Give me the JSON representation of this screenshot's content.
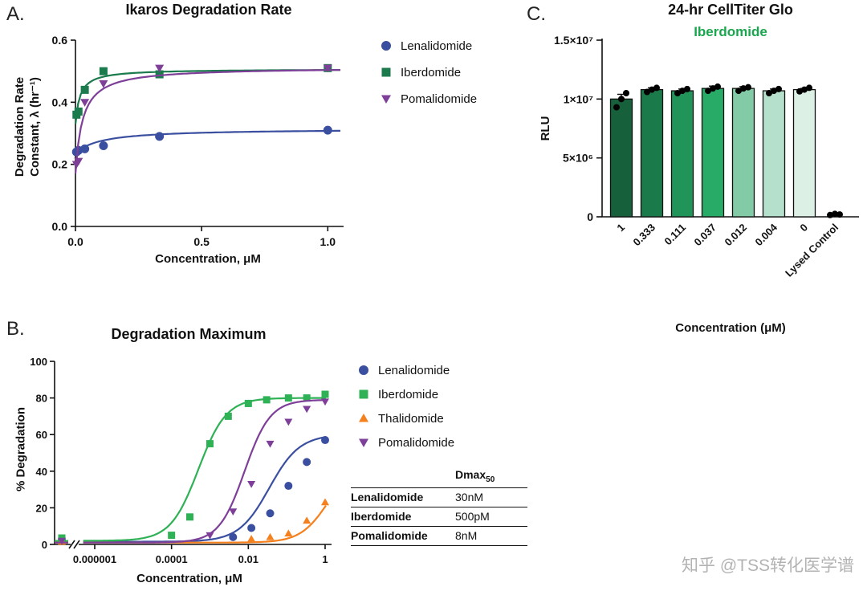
{
  "panels": {
    "a_label": "A.",
    "b_label": "B.",
    "c_label": "C."
  },
  "watermark": "知乎 @TSS转化医学谱",
  "dmax_table": {
    "header_main": "Dmax",
    "header_sub": "50",
    "rows": [
      {
        "name": "Lenalidomide",
        "value": "30nM"
      },
      {
        "name": "Iberdomide",
        "value": "500pM"
      },
      {
        "name": "Pomalidomide",
        "value": "8nM"
      }
    ]
  },
  "chart_data": [
    {
      "id": "panelA",
      "type": "scatter-line",
      "title": "Ikaros Degradation Rate",
      "xlabel": "Concentration, μM",
      "ylabel_line1": "Degradation Rate",
      "ylabel_line2": "Constant, λ (hr⁻¹)",
      "xlim": [
        0,
        1.05
      ],
      "ylim": [
        0,
        0.6
      ],
      "xticks": [
        0,
        0.5,
        1.0
      ],
      "xtick_labels": [
        "0.0",
        "0.5",
        "1.0"
      ],
      "yticks": [
        0,
        0.2,
        0.4,
        0.6
      ],
      "ytick_labels": [
        "0.0",
        "0.2",
        "0.4",
        "0.6"
      ],
      "grid": false,
      "legend_position": "right",
      "series": [
        {
          "name": "Lenalidomide",
          "color": "#3B4FA0",
          "marker": "circle",
          "x": [
            0.004,
            0.012,
            0.037,
            0.111,
            0.333,
            1.0
          ],
          "y": [
            0.24,
            0.245,
            0.25,
            0.26,
            0.29,
            0.31
          ],
          "fit": {
            "y0": 0.235,
            "plateau": 0.315,
            "K": 0.1
          }
        },
        {
          "name": "Iberdomide",
          "color": "#1B7B4C",
          "marker": "square",
          "x": [
            0.004,
            0.012,
            0.037,
            0.111,
            0.333,
            1.0
          ],
          "y": [
            0.36,
            0.37,
            0.44,
            0.5,
            0.49,
            0.51
          ],
          "fit": {
            "y0": 0.33,
            "plateau": 0.507,
            "K": 0.018
          }
        },
        {
          "name": "Pomalidomide",
          "color": "#7E3F98",
          "marker": "triangle-down",
          "x": [
            0.004,
            0.012,
            0.037,
            0.111,
            0.333,
            1.0
          ],
          "y": [
            0.2,
            0.21,
            0.4,
            0.46,
            0.51,
            0.51
          ],
          "fit": {
            "y0": 0.17,
            "plateau": 0.513,
            "K": 0.028
          }
        }
      ]
    },
    {
      "id": "panelB",
      "type": "dose-response",
      "title": "Degradation Maximum",
      "xlabel": "Concentration, μM",
      "ylabel": "% Degradation",
      "xscale": "log",
      "axis_break_at_zero": true,
      "ylim": [
        0,
        100
      ],
      "yticks": [
        0,
        20,
        40,
        60,
        80,
        100
      ],
      "xticks_log": [
        -6,
        -4,
        -2,
        0
      ],
      "xtick_labels": [
        "0.000001",
        "0.0001",
        "0.01",
        "1"
      ],
      "grid": false,
      "legend_position": "right",
      "series": [
        {
          "name": "Lenalidomide",
          "color": "#3B4FA0",
          "marker": "circle",
          "zero_y": 2.5,
          "x": [
            0.004,
            0.012,
            0.037,
            0.111,
            0.333,
            1.0
          ],
          "y": [
            4,
            9,
            17,
            32,
            45,
            57
          ],
          "fit": {
            "bottom": 1.5,
            "top": 60,
            "ec50": 0.035,
            "hill": 1.1
          }
        },
        {
          "name": "Iberdomide",
          "color": "#2FB156",
          "marker": "square",
          "zero_y": 3.5,
          "x": [
            0.0001,
            0.0003,
            0.001,
            0.003,
            0.01,
            0.03,
            0.111,
            0.333,
            1.0
          ],
          "y": [
            5,
            15,
            55,
            70,
            77,
            79,
            80,
            80,
            82
          ],
          "fit": {
            "bottom": 2,
            "top": 80,
            "ec50": 0.0005,
            "hill": 1.2
          }
        },
        {
          "name": "Thalidomide",
          "color": "#F5801E",
          "marker": "triangle-up",
          "zero_y": 1.5,
          "x": [
            0.012,
            0.037,
            0.111,
            0.333,
            1.0
          ],
          "y": [
            3,
            4,
            6,
            13,
            23
          ],
          "fit": {
            "bottom": 1,
            "top": 45,
            "ec50": 1.2,
            "hill": 1.2
          }
        },
        {
          "name": "Pomalidomide",
          "color": "#7E3F98",
          "marker": "triangle-down",
          "zero_y": 2.0,
          "x": [
            0.001,
            0.004,
            0.012,
            0.037,
            0.111,
            0.333,
            1.0
          ],
          "y": [
            5,
            18,
            33,
            55,
            67,
            74,
            78
          ],
          "fit": {
            "bottom": 1,
            "top": 79,
            "ec50": 0.008,
            "hill": 1.3
          }
        }
      ]
    },
    {
      "id": "panelC",
      "type": "bar",
      "title": "24-hr CellTiter Glo",
      "subtitle": "Iberdomide",
      "subtitle_color": "#1AA64E",
      "xlabel": "Concentration (μM)",
      "ylabel": "RLU",
      "ylim": [
        0,
        15000000
      ],
      "yticks": [
        0,
        5000000,
        10000000,
        15000000
      ],
      "ytick_labels": [
        "0",
        "5×10⁶",
        "1×10⁷",
        "1.5×10⁷"
      ],
      "categories": [
        "1",
        "0.333",
        "0.111",
        "0.037",
        "0.012",
        "0.004",
        "0",
        "Lysed Control"
      ],
      "values": [
        10000000,
        10800000,
        10700000,
        10900000,
        10900000,
        10700000,
        10800000,
        100000
      ],
      "bar_colors": [
        "#16603C",
        "#1B7A4A",
        "#21945A",
        "#29AB68",
        "#82CBA6",
        "#B5E0CB",
        "#DDF0E6",
        "#FFFFFF"
      ],
      "error": [
        400000,
        150000,
        150000,
        200000,
        150000,
        150000,
        100000,
        50000
      ],
      "dots": [
        [
          9300000,
          10000000,
          10500000
        ],
        [
          10600000,
          10800000,
          10950000
        ],
        [
          10500000,
          10700000,
          10850000
        ],
        [
          10700000,
          10900000,
          11050000
        ],
        [
          10700000,
          10900000,
          11000000
        ],
        [
          10500000,
          10700000,
          10850000
        ],
        [
          10650000,
          10800000,
          10950000
        ],
        [
          150000,
          250000,
          200000
        ]
      ],
      "grid": false
    }
  ]
}
